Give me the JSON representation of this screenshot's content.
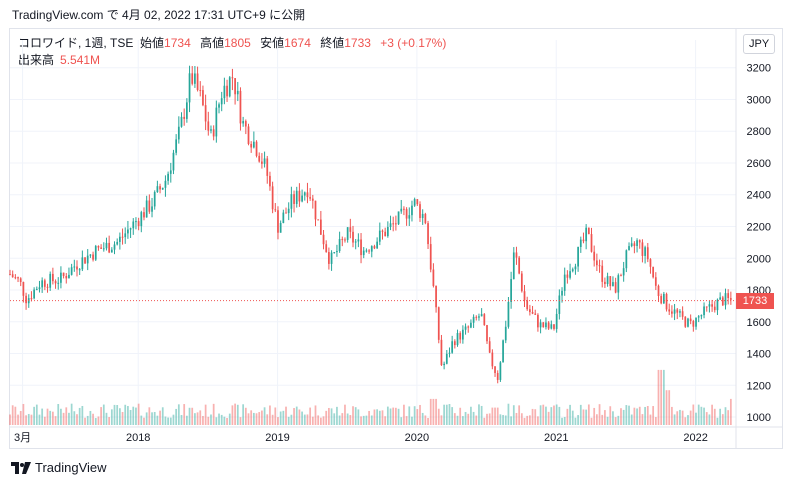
{
  "header": {
    "publish_line": "TradingView.com で 4月 02, 2022 17:31 UTC+9 に公開"
  },
  "legend": {
    "symbol": "コロワイド, 1週, TSE",
    "open_label": "始値",
    "open": "1734",
    "high_label": "高値",
    "high": "1805",
    "low_label": "安値",
    "low": "1674",
    "close_label": "終値",
    "close": "1733",
    "change": "+3 (+0.17%)",
    "volume_label": "出来高",
    "volume": "5.541M"
  },
  "currency": "JPY",
  "last_price_tag": "1733",
  "brand": {
    "name": "TradingView"
  },
  "colors": {
    "up": "#26a69a",
    "down": "#ef5350",
    "grid": "#f0f3fa",
    "axis_text": "#131722"
  },
  "chart_data": {
    "type": "candlestick",
    "interval": "weekly",
    "y_axis": {
      "ticks": [
        1000,
        1200,
        1400,
        1600,
        1800,
        2000,
        2200,
        2400,
        2600,
        2800,
        3000,
        3200
      ],
      "range": [
        950,
        3280
      ],
      "position": "right"
    },
    "x_axis": {
      "ticks": [
        {
          "label": "3月",
          "t": 2017.17
        },
        {
          "label": "2018",
          "t": 2018.0
        },
        {
          "label": "2019",
          "t": 2019.0
        },
        {
          "label": "2020",
          "t": 2020.0
        },
        {
          "label": "2021",
          "t": 2021.0
        },
        {
          "label": "2022",
          "t": 2022.0
        }
      ],
      "range": [
        2017.08,
        2022.29
      ]
    },
    "last_close": 1733,
    "close_path": [
      {
        "t": 2017.08,
        "v": 1900
      },
      {
        "t": 2017.15,
        "v": 1850
      },
      {
        "t": 2017.2,
        "v": 1740
      },
      {
        "t": 2017.3,
        "v": 1850
      },
      {
        "t": 2017.45,
        "v": 1870
      },
      {
        "t": 2017.55,
        "v": 1960
      },
      {
        "t": 2017.7,
        "v": 2050
      },
      {
        "t": 2017.85,
        "v": 2100
      },
      {
        "t": 2018.0,
        "v": 2250
      },
      {
        "t": 2018.1,
        "v": 2350
      },
      {
        "t": 2018.2,
        "v": 2500
      },
      {
        "t": 2018.3,
        "v": 2800
      },
      {
        "t": 2018.38,
        "v": 3150
      },
      {
        "t": 2018.45,
        "v": 3000
      },
      {
        "t": 2018.52,
        "v": 2750
      },
      {
        "t": 2018.6,
        "v": 3050
      },
      {
        "t": 2018.68,
        "v": 3150
      },
      {
        "t": 2018.75,
        "v": 2850
      },
      {
        "t": 2018.85,
        "v": 2700
      },
      {
        "t": 2018.92,
        "v": 2550
      },
      {
        "t": 2019.0,
        "v": 2200
      },
      {
        "t": 2019.1,
        "v": 2350
      },
      {
        "t": 2019.22,
        "v": 2450
      },
      {
        "t": 2019.3,
        "v": 2200
      },
      {
        "t": 2019.38,
        "v": 1980
      },
      {
        "t": 2019.5,
        "v": 2150
      },
      {
        "t": 2019.62,
        "v": 2050
      },
      {
        "t": 2019.75,
        "v": 2150
      },
      {
        "t": 2019.88,
        "v": 2250
      },
      {
        "t": 2019.98,
        "v": 2350
      },
      {
        "t": 2020.06,
        "v": 2250
      },
      {
        "t": 2020.12,
        "v": 1800
      },
      {
        "t": 2020.18,
        "v": 1300
      },
      {
        "t": 2020.26,
        "v": 1480
      },
      {
        "t": 2020.36,
        "v": 1550
      },
      {
        "t": 2020.46,
        "v": 1650
      },
      {
        "t": 2020.52,
        "v": 1380
      },
      {
        "t": 2020.58,
        "v": 1250
      },
      {
        "t": 2020.64,
        "v": 1600
      },
      {
        "t": 2020.7,
        "v": 2050
      },
      {
        "t": 2020.78,
        "v": 1700
      },
      {
        "t": 2020.88,
        "v": 1580
      },
      {
        "t": 2020.98,
        "v": 1550
      },
      {
        "t": 2021.06,
        "v": 1900
      },
      {
        "t": 2021.14,
        "v": 2000
      },
      {
        "t": 2021.22,
        "v": 2150
      },
      {
        "t": 2021.32,
        "v": 1900
      },
      {
        "t": 2021.42,
        "v": 1800
      },
      {
        "t": 2021.5,
        "v": 2000
      },
      {
        "t": 2021.58,
        "v": 2100
      },
      {
        "t": 2021.66,
        "v": 2000
      },
      {
        "t": 2021.72,
        "v": 1800
      },
      {
        "t": 2021.8,
        "v": 1700
      },
      {
        "t": 2021.9,
        "v": 1620
      },
      {
        "t": 2021.96,
        "v": 1580
      },
      {
        "t": 2022.05,
        "v": 1650
      },
      {
        "t": 2022.12,
        "v": 1700
      },
      {
        "t": 2022.2,
        "v": 1740
      },
      {
        "t": 2022.26,
        "v": 1733
      }
    ],
    "volume_spikes": [
      {
        "t": 2020.12,
        "rel": 0.45
      },
      {
        "t": 2020.2,
        "rel": 0.35
      },
      {
        "t": 2020.56,
        "rel": 0.3
      },
      {
        "t": 2021.75,
        "rel": 0.95
      },
      {
        "t": 2021.8,
        "rel": 0.6
      },
      {
        "t": 2022.26,
        "rel": 0.45
      }
    ]
  }
}
